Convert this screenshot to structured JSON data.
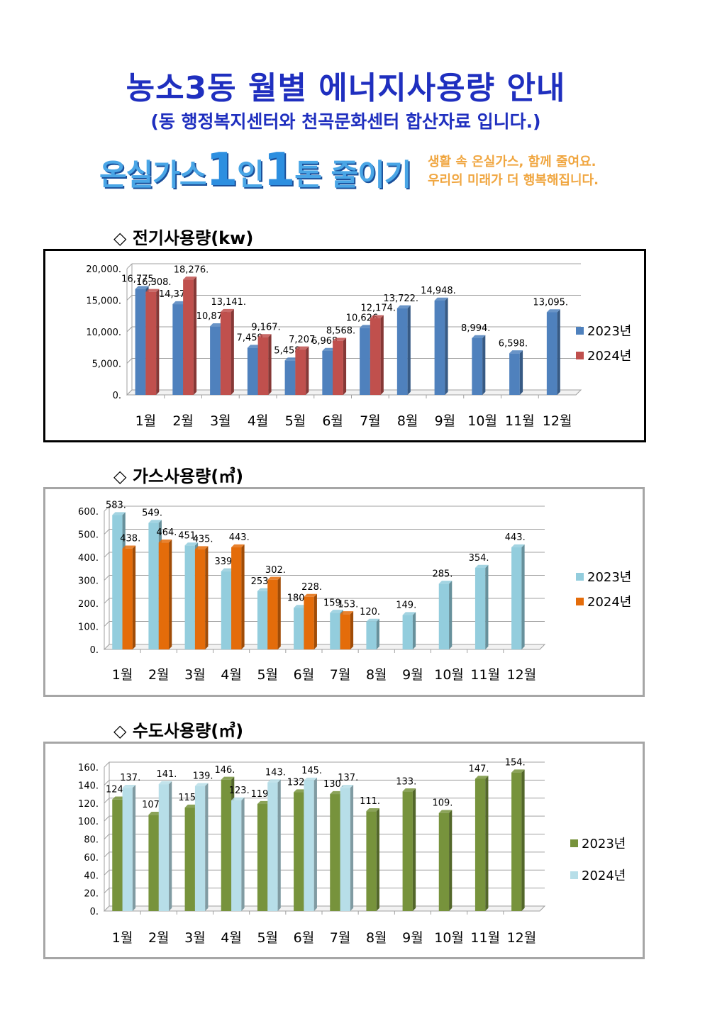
{
  "header": {
    "title": "농소3동 월별 에너지사용량 안내",
    "subtitle": "(동 행정복지센터와 천곡문화센터 합산자료 입니다.)"
  },
  "slogan": {
    "part1": "온실가스",
    "one_a": "1",
    "part2": "인",
    "one_b": "1",
    "part3": "톤 줄이기",
    "side_line1": "생활 속 온실가스, 함께 줄여요.",
    "side_line2": "우리의 미래가 더 행복해집니다."
  },
  "sections": {
    "electricity_title": "◇ 전기사용량(kw)",
    "gas_title": "◇ 가스사용량(㎥)",
    "water_title": "◇ 수도사용량(㎥)"
  },
  "chart_data": [
    {
      "type": "bar",
      "categories": [
        "1월",
        "2월",
        "3월",
        "4월",
        "5월",
        "6월",
        "7월",
        "8월",
        "9월",
        "10월",
        "11월",
        "12월"
      ],
      "yticks": [
        "0.",
        "5,000.",
        "10,000.",
        "15,000.",
        "20,000."
      ],
      "ylim": [
        0,
        20000
      ],
      "grid": true,
      "legend_position": "right",
      "series": [
        {
          "name": "2023년",
          "color": "#4f81bd",
          "values": [
            16775,
            14376,
            10875,
            7459,
            5458,
            6968,
            10626,
            13722,
            14948,
            8994,
            6598,
            13095
          ],
          "labels": [
            "16,775.",
            "14,376.",
            "10,875.",
            "7,459.",
            "5,458.",
            "6,968.",
            "10,626.",
            "13,722.",
            "14,948.",
            "8,994.",
            "6,598.",
            "13,095."
          ]
        },
        {
          "name": "2024년",
          "color": "#c0504d",
          "values": [
            16308,
            18276,
            13141,
            9167,
            7207,
            8568,
            12174,
            null,
            null,
            null,
            null,
            null
          ],
          "labels": [
            "16,308.",
            "18,276.",
            "13,141.",
            "9,167.",
            "7,207.",
            "8,568.",
            "12,174.",
            "",
            "",
            "",
            "",
            ""
          ]
        }
      ]
    },
    {
      "type": "bar",
      "categories": [
        "1월",
        "2월",
        "3월",
        "4월",
        "5월",
        "6월",
        "7월",
        "8월",
        "9월",
        "10월",
        "11월",
        "12월"
      ],
      "yticks": [
        "0.",
        "100.",
        "200.",
        "300.",
        "400.",
        "500.",
        "600."
      ],
      "ylim": [
        0,
        600
      ],
      "grid": true,
      "legend_position": "right",
      "series": [
        {
          "name": "2023년",
          "color": "#93cddd",
          "values": [
            583,
            549,
            451,
            339,
            253,
            180,
            159,
            120,
            149,
            285,
            354,
            443
          ],
          "labels": [
            "583.",
            "549.",
            "451.",
            "339.",
            "253.",
            "180.",
            "159.",
            "120.",
            "149.",
            "285.",
            "354.",
            "443."
          ]
        },
        {
          "name": "2024년",
          "color": "#e46c0a",
          "values": [
            438,
            464,
            435,
            443,
            302,
            228,
            153,
            null,
            null,
            null,
            null,
            null
          ],
          "labels": [
            "438.",
            "464.",
            "435.",
            "443.",
            "302.",
            "228.",
            "153.",
            "",
            "",
            "",
            "",
            ""
          ]
        }
      ]
    },
    {
      "type": "bar",
      "categories": [
        "1월",
        "2월",
        "3월",
        "4월",
        "5월",
        "6월",
        "7월",
        "8월",
        "9월",
        "10월",
        "11월",
        "12월"
      ],
      "yticks": [
        "0.",
        "20.",
        "40.",
        "60.",
        "80.",
        "100.",
        "120.",
        "140.",
        "160."
      ],
      "ylim": [
        0,
        160
      ],
      "grid": true,
      "legend_position": "right",
      "series": [
        {
          "name": "2023년",
          "color": "#77933c",
          "values": [
            124,
            107,
            115,
            146,
            119,
            132,
            130,
            111,
            133,
            109,
            147,
            154
          ],
          "labels": [
            "124.",
            "107.",
            "115.",
            "146.",
            "119.",
            "132.",
            "130.",
            "111.",
            "133.",
            "109.",
            "147.",
            "154."
          ]
        },
        {
          "name": "2024년",
          "color": "#b7dee8",
          "values": [
            137,
            141,
            139,
            123,
            143,
            145,
            137,
            null,
            null,
            null,
            null,
            null
          ],
          "labels": [
            "137.",
            "141.",
            "139.",
            "123.",
            "143.",
            "145.",
            "137.",
            "",
            "",
            "",
            "",
            ""
          ]
        }
      ]
    }
  ]
}
